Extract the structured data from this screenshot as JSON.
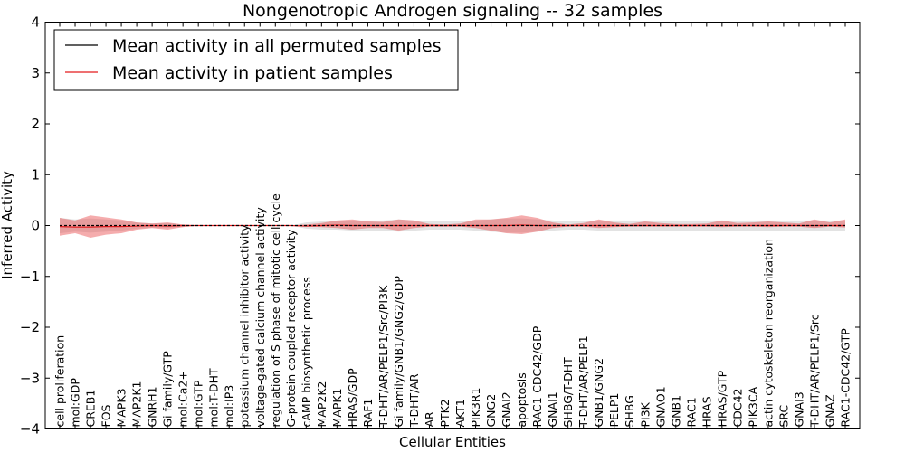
{
  "chart_data": {
    "type": "line",
    "title": "Nongenotropic Androgen signaling -- 32 samples",
    "xlabel": "Cellular Entities",
    "ylabel": "Inferred Activity",
    "ylim": [
      -4,
      4
    ],
    "yticks": [
      4,
      3,
      2,
      1,
      0,
      -1,
      -2,
      -3,
      -4
    ],
    "ytick_labels": [
      "4",
      "3",
      "2",
      "1",
      "0",
      "−1",
      "−2",
      "−3",
      "−4"
    ],
    "grid": false,
    "legend_position": "top-left",
    "categories": [
      "cell proliferation",
      "mol:GDP",
      "CREB1",
      "FOS",
      "MAPK3",
      "MAP2K1",
      "GNRH1",
      "Gi family/GTP",
      "mol:Ca2+",
      "mol:GTP",
      "mol:T-DHT",
      "mol:IP3",
      "potassium channel inhibitor activity",
      "voltage-gated calcium channel activity",
      "regulation of S phase of mitotic cell cycle",
      "G-protein coupled receptor activity",
      "cAMP biosynthetic process",
      "MAP2K2",
      "MAPK1",
      "HRAS/GDP",
      "RAF1",
      "T-DHT/AR/PELP1/Src/PI3K",
      "Gi family/GNB1/GNG2/GDP",
      "T-DHT/AR",
      "AR",
      "PTK2",
      "AKT1",
      "PIK3R1",
      "GNG2",
      "GNAI2",
      "apoptosis",
      "RAC1-CDC42/GDP",
      "GNAI1",
      "SHBG/T-DHT",
      "T-DHT/AR/PELP1",
      "GNB1/GNG2",
      "PELP1",
      "SHBG",
      "PI3K",
      "GNAO1",
      "GNB1",
      "RAC1",
      "HRAS",
      "HRAS/GTP",
      "CDC42",
      "PIK3CA",
      "actin cytoskeleton reorganization",
      "SRC",
      "GNAI3",
      "T-DHT/AR/PELP1/Src",
      "GNAZ",
      "RAC1-CDC42/GTP"
    ],
    "series": [
      {
        "name": "Mean activity in all permuted samples",
        "color": "#000000",
        "values": [
          0,
          0,
          0,
          0,
          0,
          0,
          0,
          0,
          0,
          0,
          0,
          0,
          0,
          0,
          0,
          0,
          0,
          0,
          0,
          0,
          0,
          0,
          0,
          0,
          0,
          0,
          0,
          0,
          0,
          0,
          0,
          0,
          0,
          0,
          0,
          0,
          0,
          0,
          0,
          0,
          0,
          0,
          0,
          0,
          0,
          0,
          0,
          0,
          0,
          0,
          0,
          0
        ],
        "band_low": [
          -0.15,
          -0.12,
          -0.14,
          -0.12,
          -0.1,
          -0.06,
          -0.04,
          -0.05,
          -0.02,
          0,
          0,
          0,
          0,
          0,
          0,
          0,
          -0.06,
          -0.08,
          -0.08,
          -0.1,
          -0.1,
          -0.1,
          -0.12,
          -0.1,
          -0.08,
          -0.08,
          -0.08,
          -0.1,
          -0.12,
          -0.14,
          -0.14,
          -0.12,
          -0.1,
          -0.08,
          -0.08,
          -0.1,
          -0.1,
          -0.1,
          -0.1,
          -0.1,
          -0.1,
          -0.1,
          -0.1,
          -0.1,
          -0.1,
          -0.1,
          -0.1,
          -0.1,
          -0.1,
          -0.1,
          -0.1,
          -0.1
        ],
        "band_high": [
          0.15,
          0.12,
          0.14,
          0.12,
          0.1,
          0.06,
          0.04,
          0.05,
          0.02,
          0,
          0,
          0,
          0,
          0,
          0,
          0,
          0.06,
          0.08,
          0.08,
          0.1,
          0.1,
          0.1,
          0.12,
          0.1,
          0.08,
          0.08,
          0.08,
          0.1,
          0.12,
          0.14,
          0.14,
          0.12,
          0.1,
          0.08,
          0.08,
          0.1,
          0.1,
          0.1,
          0.1,
          0.1,
          0.1,
          0.1,
          0.1,
          0.1,
          0.1,
          0.1,
          0.1,
          0.1,
          0.1,
          0.1,
          0.1,
          0.1
        ]
      },
      {
        "name": "Mean activity in patient samples",
        "color": "#e31a1c",
        "values": [
          -0.02,
          -0.03,
          -0.03,
          -0.02,
          -0.02,
          -0.01,
          0,
          -0.01,
          0,
          0,
          0,
          0,
          0,
          0,
          0,
          0,
          -0.01,
          0,
          0.01,
          0,
          0,
          0,
          0,
          0,
          0,
          0,
          0,
          0,
          0,
          0,
          0.01,
          0,
          0,
          0,
          0,
          0,
          0,
          0,
          0,
          0,
          0,
          0,
          0,
          0,
          0,
          0,
          0,
          0,
          0,
          0,
          0,
          0
        ],
        "band_low": [
          -0.2,
          -0.15,
          -0.24,
          -0.18,
          -0.15,
          -0.08,
          -0.05,
          -0.08,
          -0.03,
          0,
          0,
          0,
          0,
          0,
          0,
          0,
          -0.02,
          -0.03,
          -0.05,
          -0.08,
          -0.05,
          -0.05,
          -0.1,
          -0.05,
          -0.02,
          -0.02,
          -0.02,
          -0.05,
          -0.1,
          -0.15,
          -0.17,
          -0.12,
          -0.05,
          -0.02,
          -0.02,
          -0.05,
          -0.03,
          -0.02,
          -0.02,
          -0.02,
          -0.02,
          -0.02,
          -0.02,
          -0.03,
          -0.02,
          -0.02,
          -0.03,
          -0.02,
          -0.02,
          -0.05,
          -0.02,
          -0.04
        ],
        "band_high": [
          0.15,
          0.1,
          0.2,
          0.16,
          0.12,
          0.06,
          0.04,
          0.06,
          0.02,
          0,
          0,
          0,
          0,
          0,
          0,
          0,
          0.02,
          0.05,
          0.1,
          0.12,
          0.08,
          0.07,
          0.12,
          0.1,
          0.03,
          0.02,
          0.04,
          0.12,
          0.12,
          0.15,
          0.2,
          0.15,
          0.06,
          0.02,
          0.05,
          0.12,
          0.06,
          0.03,
          0.08,
          0.05,
          0.03,
          0.03,
          0.04,
          0.1,
          0.05,
          0.06,
          0.08,
          0.06,
          0.04,
          0.12,
          0.06,
          0.12
        ]
      }
    ]
  }
}
